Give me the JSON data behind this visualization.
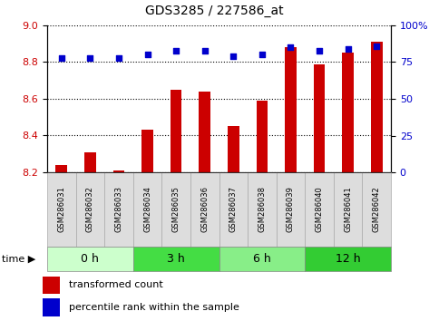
{
  "title": "GDS3285 / 227586_at",
  "categories": [
    "GSM286031",
    "GSM286032",
    "GSM286033",
    "GSM286034",
    "GSM286035",
    "GSM286036",
    "GSM286037",
    "GSM286038",
    "GSM286039",
    "GSM286040",
    "GSM286041",
    "GSM286042"
  ],
  "bar_values": [
    8.24,
    8.31,
    8.21,
    8.43,
    8.65,
    8.64,
    8.45,
    8.59,
    8.88,
    8.79,
    8.85,
    8.91
  ],
  "scatter_values": [
    78,
    78,
    78,
    80,
    83,
    83,
    79,
    80,
    85,
    83,
    84,
    86
  ],
  "bar_bottom": 8.2,
  "ylim_left": [
    8.2,
    9.0
  ],
  "ylim_right": [
    0,
    100
  ],
  "yticks_left": [
    8.2,
    8.4,
    8.6,
    8.8,
    9.0
  ],
  "yticks_right": [
    0,
    25,
    50,
    75,
    100
  ],
  "bar_color": "#cc0000",
  "scatter_color": "#0000cc",
  "time_groups": [
    {
      "label": "0 h",
      "start": 0,
      "end": 3,
      "color": "#ccffcc"
    },
    {
      "label": "3 h",
      "start": 3,
      "end": 6,
      "color": "#44dd44"
    },
    {
      "label": "6 h",
      "start": 6,
      "end": 9,
      "color": "#88ee88"
    },
    {
      "label": "12 h",
      "start": 9,
      "end": 12,
      "color": "#33cc33"
    }
  ],
  "legend_bar_label": "transformed count",
  "legend_scatter_label": "percentile rank within the sample",
  "bg_color": "#ffffff",
  "tick_label_color_left": "#cc0000",
  "tick_label_color_right": "#0000cc",
  "sample_box_color": "#dddddd",
  "bar_width": 0.4
}
